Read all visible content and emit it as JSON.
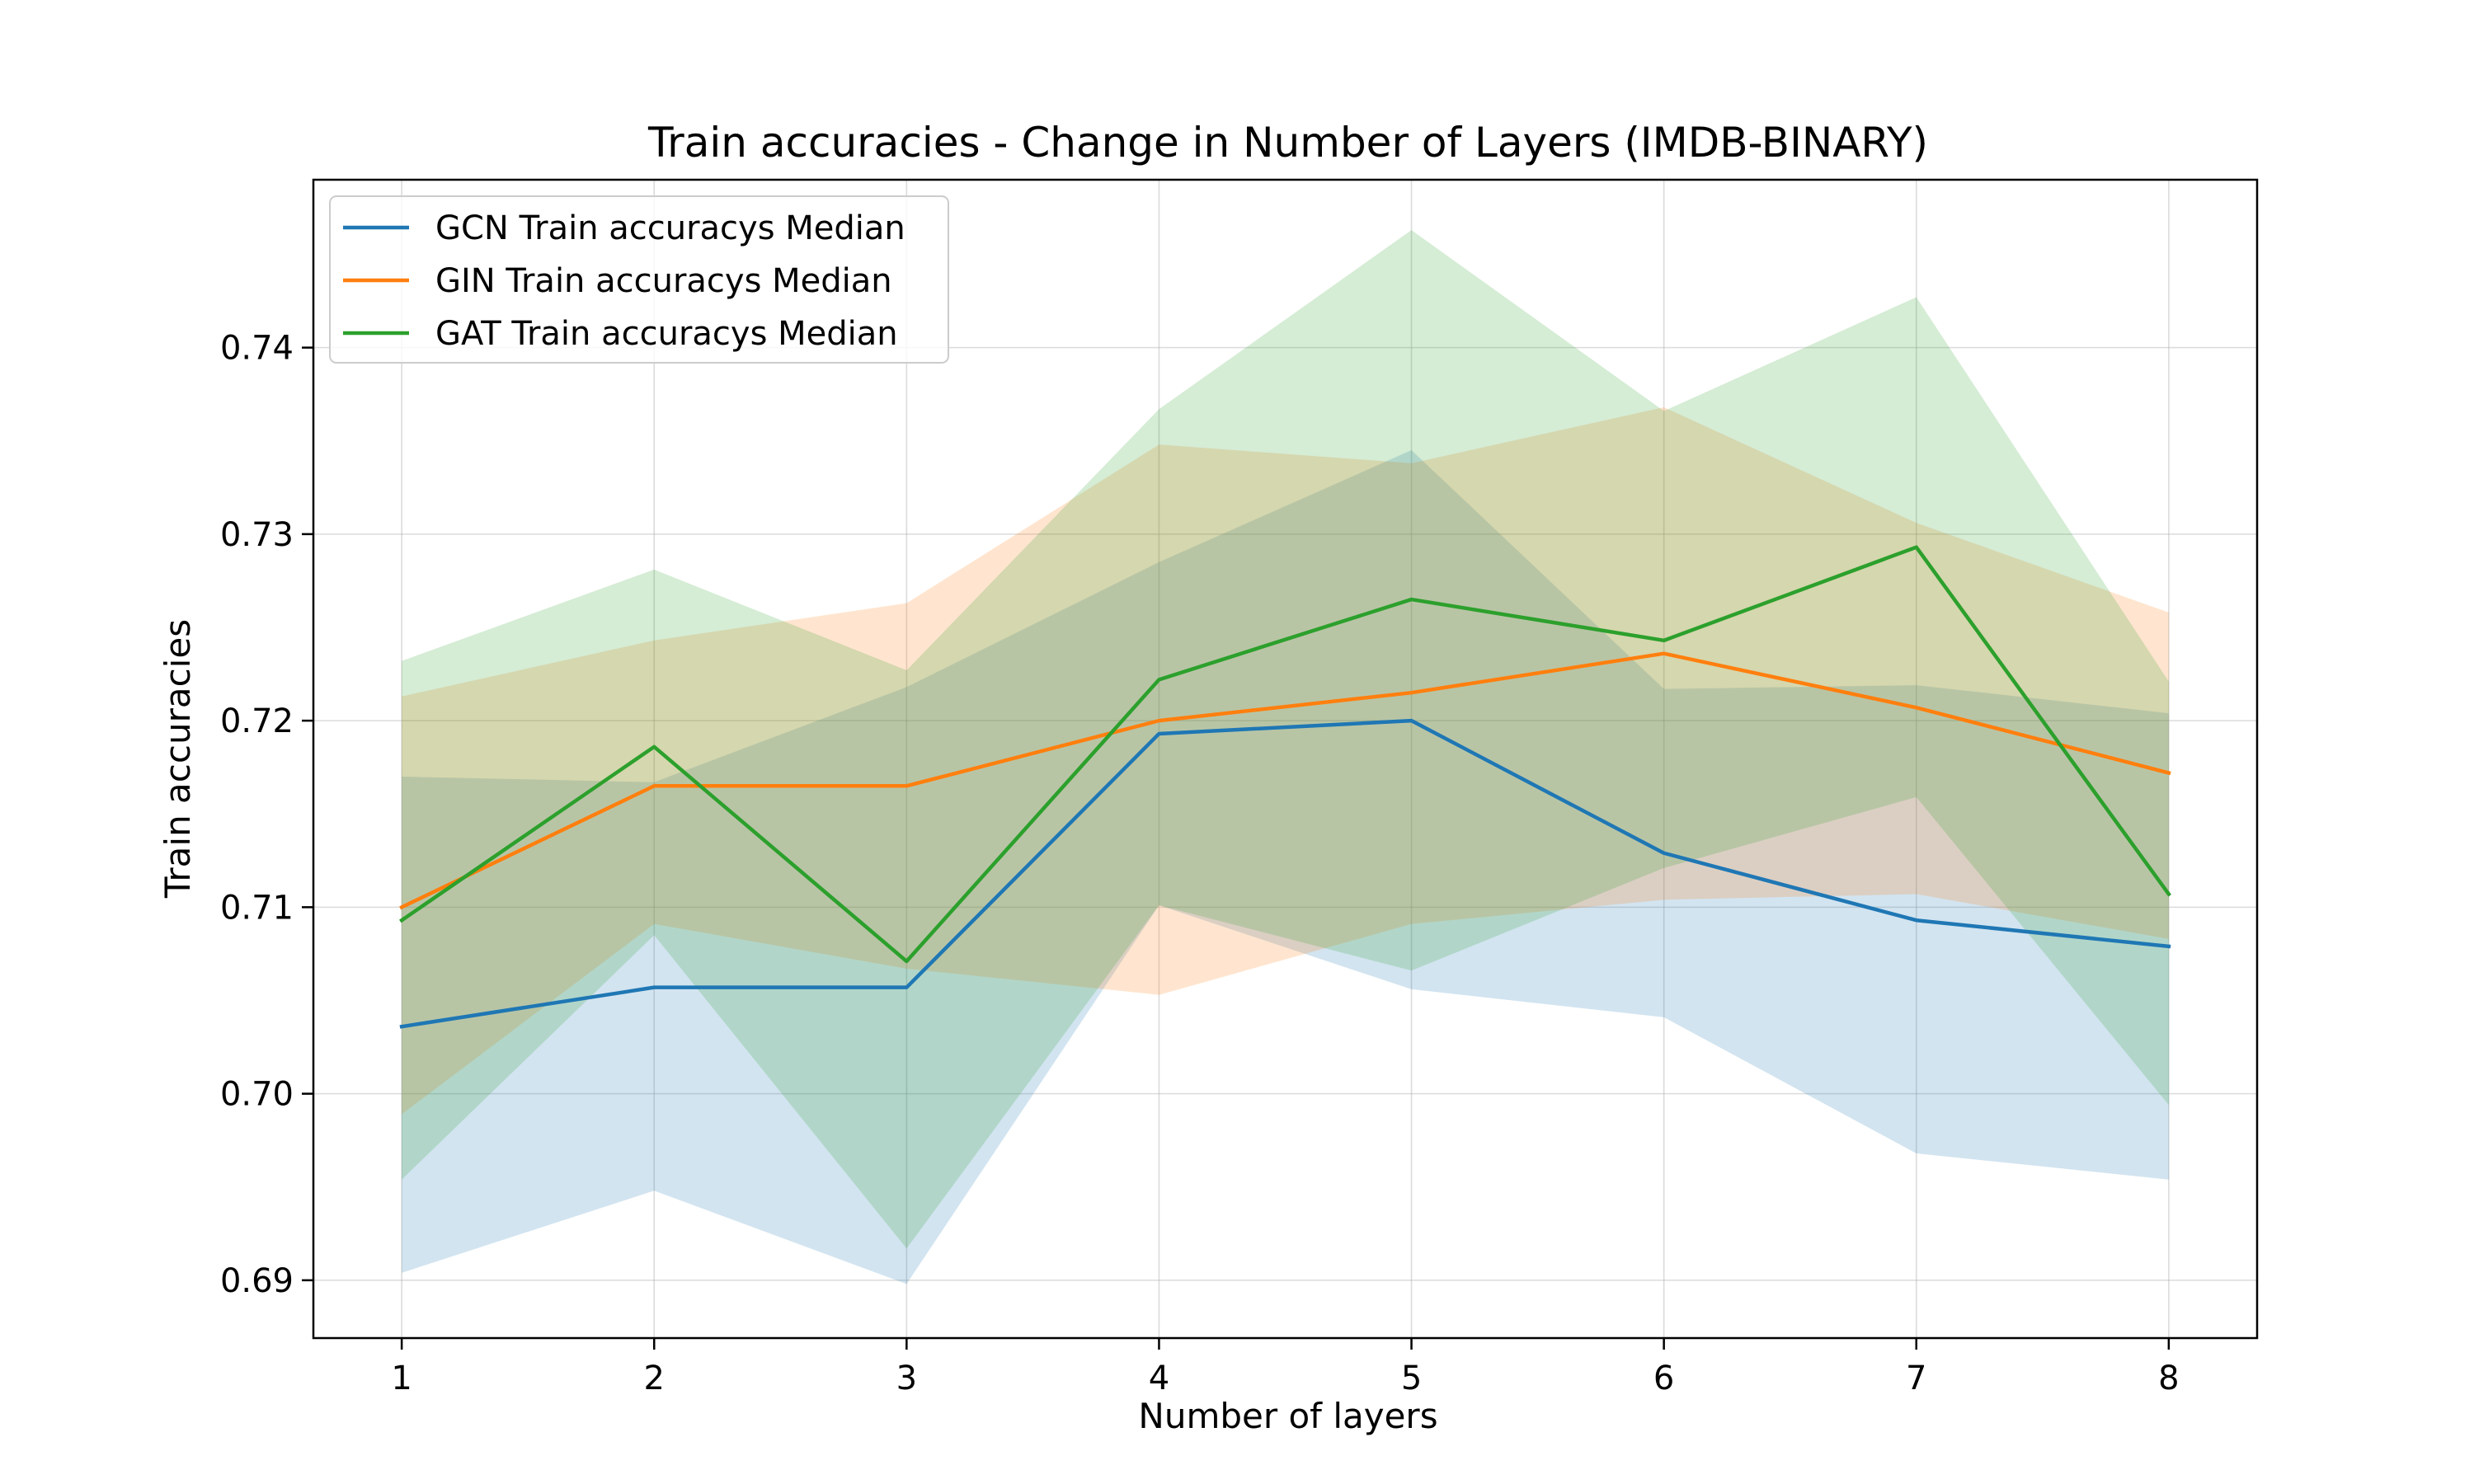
{
  "chart_data": {
    "type": "line",
    "title": "Train accuracies - Change in Number of Layers (IMDB-BINARY)",
    "xlabel": "Number of layers",
    "ylabel": "Train accuracies",
    "x": [
      1,
      2,
      3,
      4,
      5,
      6,
      7,
      8
    ],
    "xticks": [
      "1",
      "2",
      "3",
      "4",
      "5",
      "6",
      "7",
      "8"
    ],
    "yticks": [
      "0.69",
      "0.70",
      "0.71",
      "0.72",
      "0.73",
      "0.74"
    ],
    "ytick_values": [
      0.69,
      0.7,
      0.71,
      0.72,
      0.73,
      0.74
    ],
    "xlim": [
      0.65,
      8.35
    ],
    "ylim": [
      0.6869,
      0.749
    ],
    "grid": true,
    "legend_position": "top-left",
    "series": [
      {
        "name": "GCN Train accuracys Median",
        "color": "#1f77b4",
        "values": [
          0.7036,
          0.7057,
          0.7057,
          0.7193,
          0.72,
          0.7129,
          0.7093,
          0.7079
        ],
        "band_upper": [
          0.717,
          0.7167,
          0.7218,
          0.7285,
          0.7345,
          0.7217,
          0.7219,
          0.7204
        ],
        "band_lower": [
          0.6904,
          0.6948,
          0.6898,
          0.7101,
          0.7056,
          0.7041,
          0.6968,
          0.6954
        ]
      },
      {
        "name": "GIN Train accuracys Median",
        "color": "#ff7f0e",
        "values": [
          0.71,
          0.7165,
          0.7165,
          0.72,
          0.7215,
          0.7236,
          0.7207,
          0.7172
        ],
        "band_upper": [
          0.7213,
          0.7243,
          0.7263,
          0.7348,
          0.7338,
          0.7368,
          0.7306,
          0.7258
        ],
        "band_lower": [
          0.6989,
          0.7091,
          0.7067,
          0.7053,
          0.7091,
          0.7104,
          0.7107,
          0.7083
        ]
      },
      {
        "name": "GAT Train accuracys Median",
        "color": "#2ca02c",
        "values": [
          0.7093,
          0.7186,
          0.7071,
          0.7222,
          0.7265,
          0.7243,
          0.7293,
          0.7107
        ],
        "band_upper": [
          0.7232,
          0.7281,
          0.7227,
          0.7367,
          0.7463,
          0.7366,
          0.7427,
          0.7221
        ],
        "band_lower": [
          0.6954,
          0.7085,
          0.6917,
          0.7101,
          0.7066,
          0.7121,
          0.7159,
          0.6994
        ]
      }
    ]
  }
}
